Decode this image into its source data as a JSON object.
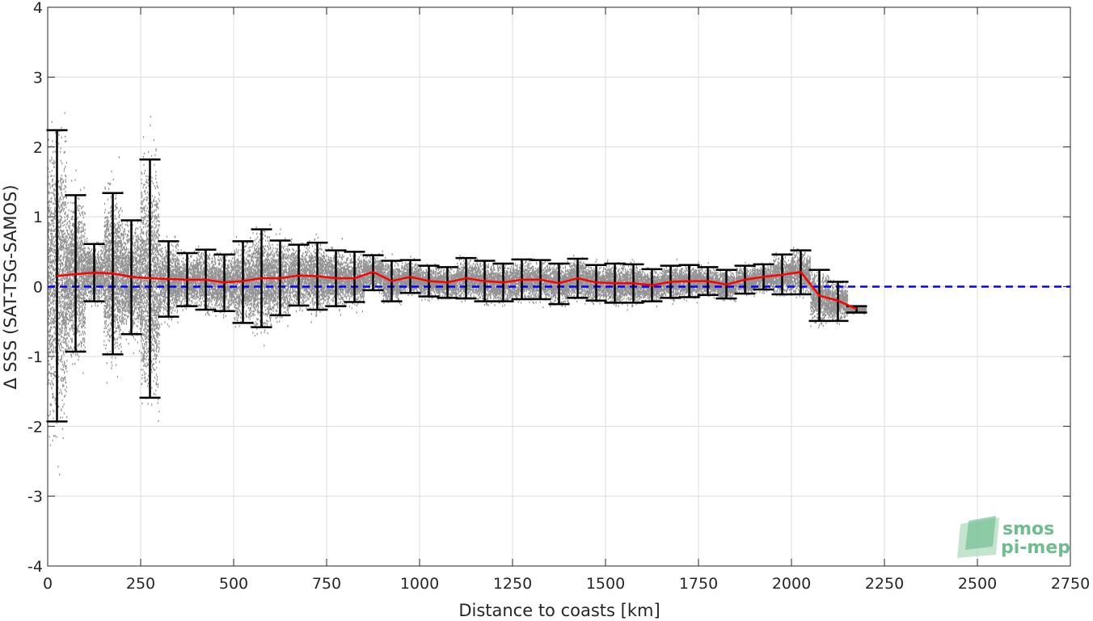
{
  "chart_data": {
    "type": "scatter",
    "xlabel": "Distance to coasts [km]",
    "ylabel": "Δ SSS (SAT-TSG-SAMOS)",
    "xlim": [
      0,
      2750
    ],
    "ylim": [
      -4,
      4
    ],
    "xticks": [
      0,
      250,
      500,
      750,
      1000,
      1250,
      1500,
      1750,
      2000,
      2250,
      2500,
      2750
    ],
    "yticks": [
      -4,
      -3,
      -2,
      -1,
      0,
      1,
      2,
      3,
      4
    ],
    "grid": true,
    "reference_line": {
      "y": 0,
      "color": "#0000ff",
      "style": "dashed"
    },
    "colors": {
      "scatter": "#808080",
      "mean": "#ff0000",
      "errorbar": "#000000",
      "grid": "#dcdcdc"
    },
    "scatter_description": "dense cloud of individual match-up differences",
    "series": [
      {
        "kind": "binned_mean_with_std",
        "x": [
          25,
          75,
          125,
          175,
          225,
          275,
          325,
          375,
          425,
          475,
          525,
          575,
          625,
          675,
          725,
          775,
          825,
          875,
          925,
          975,
          1025,
          1075,
          1125,
          1175,
          1225,
          1275,
          1325,
          1375,
          1425,
          1475,
          1525,
          1575,
          1625,
          1675,
          1725,
          1775,
          1825,
          1875,
          1925,
          1975,
          2025,
          2075,
          2125,
          2175
        ],
        "mean": [
          0.15,
          0.18,
          0.2,
          0.19,
          0.14,
          0.12,
          0.11,
          0.1,
          0.1,
          0.06,
          0.08,
          0.12,
          0.12,
          0.16,
          0.15,
          0.12,
          0.12,
          0.21,
          0.08,
          0.14,
          0.08,
          0.06,
          0.12,
          0.08,
          0.06,
          0.1,
          0.1,
          0.05,
          0.12,
          0.06,
          0.05,
          0.05,
          0.02,
          0.07,
          0.08,
          0.08,
          0.03,
          0.1,
          0.14,
          0.17,
          0.21,
          -0.13,
          -0.2,
          -0.32
        ],
        "upper": [
          2.24,
          1.31,
          0.61,
          1.34,
          0.95,
          1.82,
          0.65,
          0.48,
          0.53,
          0.46,
          0.65,
          0.82,
          0.66,
          0.6,
          0.63,
          0.52,
          0.5,
          0.45,
          0.37,
          0.38,
          0.3,
          0.28,
          0.41,
          0.37,
          0.33,
          0.39,
          0.38,
          0.33,
          0.4,
          0.31,
          0.33,
          0.32,
          0.25,
          0.3,
          0.31,
          0.28,
          0.24,
          0.3,
          0.32,
          0.46,
          0.52,
          0.24,
          0.07,
          -0.28
        ],
        "lower": [
          -1.93,
          -0.93,
          -0.21,
          -0.97,
          -0.68,
          -1.59,
          -0.43,
          -0.28,
          -0.33,
          -0.35,
          -0.52,
          -0.58,
          -0.41,
          -0.27,
          -0.33,
          -0.28,
          -0.22,
          -0.05,
          -0.21,
          -0.09,
          -0.14,
          -0.16,
          -0.17,
          -0.21,
          -0.21,
          -0.18,
          -0.18,
          -0.25,
          -0.16,
          -0.2,
          -0.23,
          -0.23,
          -0.21,
          -0.16,
          -0.15,
          -0.12,
          -0.17,
          -0.1,
          -0.04,
          -0.11,
          -0.11,
          -0.49,
          -0.49,
          -0.37
        ]
      }
    ],
    "logo": {
      "line1": "smos",
      "line2": "pi-mep",
      "color": "#6fbd8f"
    }
  }
}
